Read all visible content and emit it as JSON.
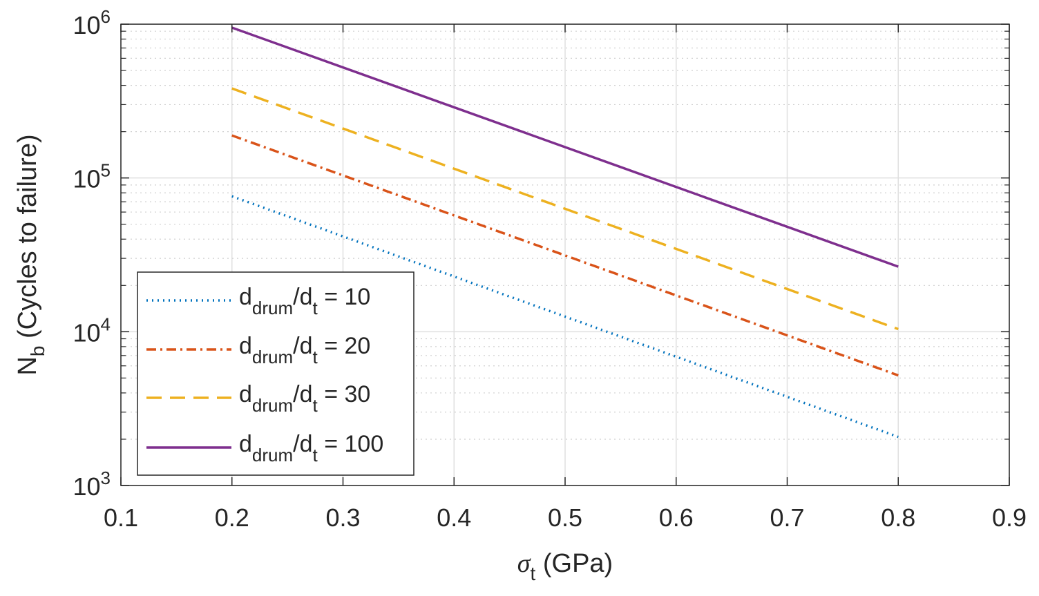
{
  "chart_data": {
    "type": "line",
    "title": "",
    "xlabel_symbol": "σ",
    "xlabel_sub": "t",
    "xlabel_rest": " (GPa)",
    "ylabel_main": "N",
    "ylabel_sub": "b",
    "ylabel_rest": " (Cycles to failure)",
    "xlim": [
      0.1,
      0.9
    ],
    "ylim": [
      1000,
      1000000
    ],
    "yscale": "log",
    "grid": true,
    "legend_position": "bottom-left",
    "xticks": [
      "0.1",
      "0.2",
      "0.3",
      "0.4",
      "0.5",
      "0.6",
      "0.7",
      "0.8",
      "0.9"
    ],
    "yticks": [
      {
        "base": "10",
        "exp": "3"
      },
      {
        "base": "10",
        "exp": "4"
      },
      {
        "base": "10",
        "exp": "5"
      },
      {
        "base": "10",
        "exp": "6"
      }
    ],
    "x": [
      0.2,
      0.8
    ],
    "series": [
      {
        "name_main": "d",
        "name_sub1": "drum",
        "name_mid": "/d",
        "name_sub2": "t",
        "name_rest": " = 10",
        "values": [
          76000,
          2070
        ],
        "color": "#0072BD",
        "style": "dotted"
      },
      {
        "name_main": "d",
        "name_sub1": "drum",
        "name_mid": "/d",
        "name_sub2": "t",
        "name_rest": " = 20",
        "values": [
          189000,
          5200
        ],
        "color": "#D95319",
        "style": "dash-dot"
      },
      {
        "name_main": "d",
        "name_sub1": "drum",
        "name_mid": "/d",
        "name_sub2": "t",
        "name_rest": " = 30",
        "values": [
          382000,
          10400
        ],
        "color": "#EDB120",
        "style": "dashed"
      },
      {
        "name_main": "d",
        "name_sub1": "drum",
        "name_mid": "/d",
        "name_sub2": "t",
        "name_rest": " = 100",
        "values": [
          950000,
          26500
        ],
        "color": "#7E2F8E",
        "style": "solid"
      }
    ]
  }
}
